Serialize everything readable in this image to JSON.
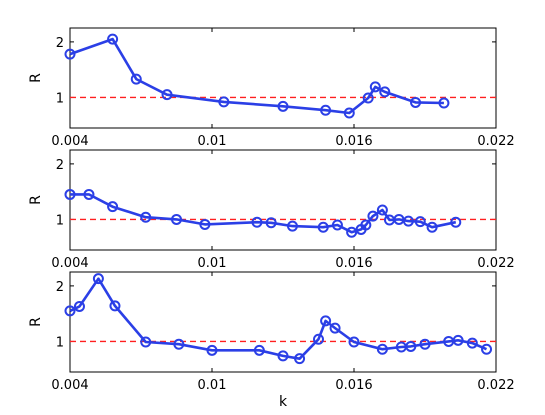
{
  "chart_data": [
    {
      "type": "line",
      "xlabel": "",
      "ylabel": "R",
      "xlim": [
        0.004,
        0.022
      ],
      "ylim": [
        0.45,
        2.25
      ],
      "x_ticks": [
        0.004,
        0.01,
        0.016,
        0.022
      ],
      "x_tick_labels": [
        "0.004",
        "0.01",
        "0.016",
        "0.022"
      ],
      "y_ticks": [
        1,
        2
      ],
      "y_tick_labels": [
        "1",
        "2"
      ],
      "reference_line": {
        "y": 1,
        "style": "dashed",
        "color": "#ff2020"
      },
      "series": [
        {
          "color": "#2b3fe6",
          "marker": "circle",
          "x": [
            0.004,
            0.0058,
            0.0068,
            0.0081,
            0.0105,
            0.013,
            0.0148,
            0.0158,
            0.0166,
            0.0169,
            0.0173,
            0.0186,
            0.0198
          ],
          "y": [
            1.78,
            2.05,
            1.33,
            1.05,
            0.92,
            0.84,
            0.77,
            0.72,
            0.99,
            1.19,
            1.1,
            0.91,
            0.9
          ]
        }
      ]
    },
    {
      "type": "line",
      "xlabel": "",
      "ylabel": "R",
      "xlim": [
        0.004,
        0.022
      ],
      "ylim": [
        0.45,
        2.25
      ],
      "x_ticks": [
        0.004,
        0.01,
        0.016,
        0.022
      ],
      "x_tick_labels": [
        "0.004",
        "0.01",
        "0.016",
        "0.022"
      ],
      "y_ticks": [
        1,
        2
      ],
      "y_tick_labels": [
        "1",
        "2"
      ],
      "reference_line": {
        "y": 1,
        "style": "dashed",
        "color": "#ff2020"
      },
      "series": [
        {
          "color": "#2b3fe6",
          "marker": "circle",
          "x": [
            0.004,
            0.0048,
            0.0058,
            0.0072,
            0.0085,
            0.0097,
            0.0119,
            0.0125,
            0.0134,
            0.0147,
            0.0153,
            0.0159,
            0.0163,
            0.0165,
            0.0168,
            0.0172,
            0.0175,
            0.0179,
            0.0183,
            0.0188,
            0.0193,
            0.0203
          ],
          "y": [
            1.45,
            1.45,
            1.23,
            1.04,
            1.0,
            0.91,
            0.95,
            0.94,
            0.88,
            0.86,
            0.9,
            0.77,
            0.82,
            0.9,
            1.06,
            1.17,
            0.99,
            1.0,
            0.97,
            0.96,
            0.86,
            0.95
          ]
        }
      ]
    },
    {
      "type": "line",
      "xlabel": "k",
      "ylabel": "R",
      "xlim": [
        0.004,
        0.022
      ],
      "ylim": [
        0.45,
        2.25
      ],
      "x_ticks": [
        0.004,
        0.01,
        0.016,
        0.022
      ],
      "x_tick_labels": [
        "0.004",
        "0.01",
        "0.016",
        "0.022"
      ],
      "y_ticks": [
        1,
        2
      ],
      "y_tick_labels": [
        "1",
        "2"
      ],
      "reference_line": {
        "y": 1,
        "style": "dashed",
        "color": "#ff2020"
      },
      "series": [
        {
          "color": "#2b3fe6",
          "marker": "circle",
          "x": [
            0.004,
            0.0044,
            0.0052,
            0.0059,
            0.0072,
            0.0086,
            0.01,
            0.012,
            0.013,
            0.0137,
            0.0145,
            0.0148,
            0.0152,
            0.016,
            0.0172,
            0.018,
            0.0184,
            0.019,
            0.02,
            0.0204,
            0.021,
            0.0216
          ],
          "y": [
            1.55,
            1.63,
            2.13,
            1.64,
            0.99,
            0.95,
            0.84,
            0.84,
            0.74,
            0.69,
            1.04,
            1.37,
            1.24,
            0.99,
            0.86,
            0.9,
            0.91,
            0.95,
            1.0,
            1.02,
            0.97,
            0.86
          ]
        }
      ]
    }
  ]
}
